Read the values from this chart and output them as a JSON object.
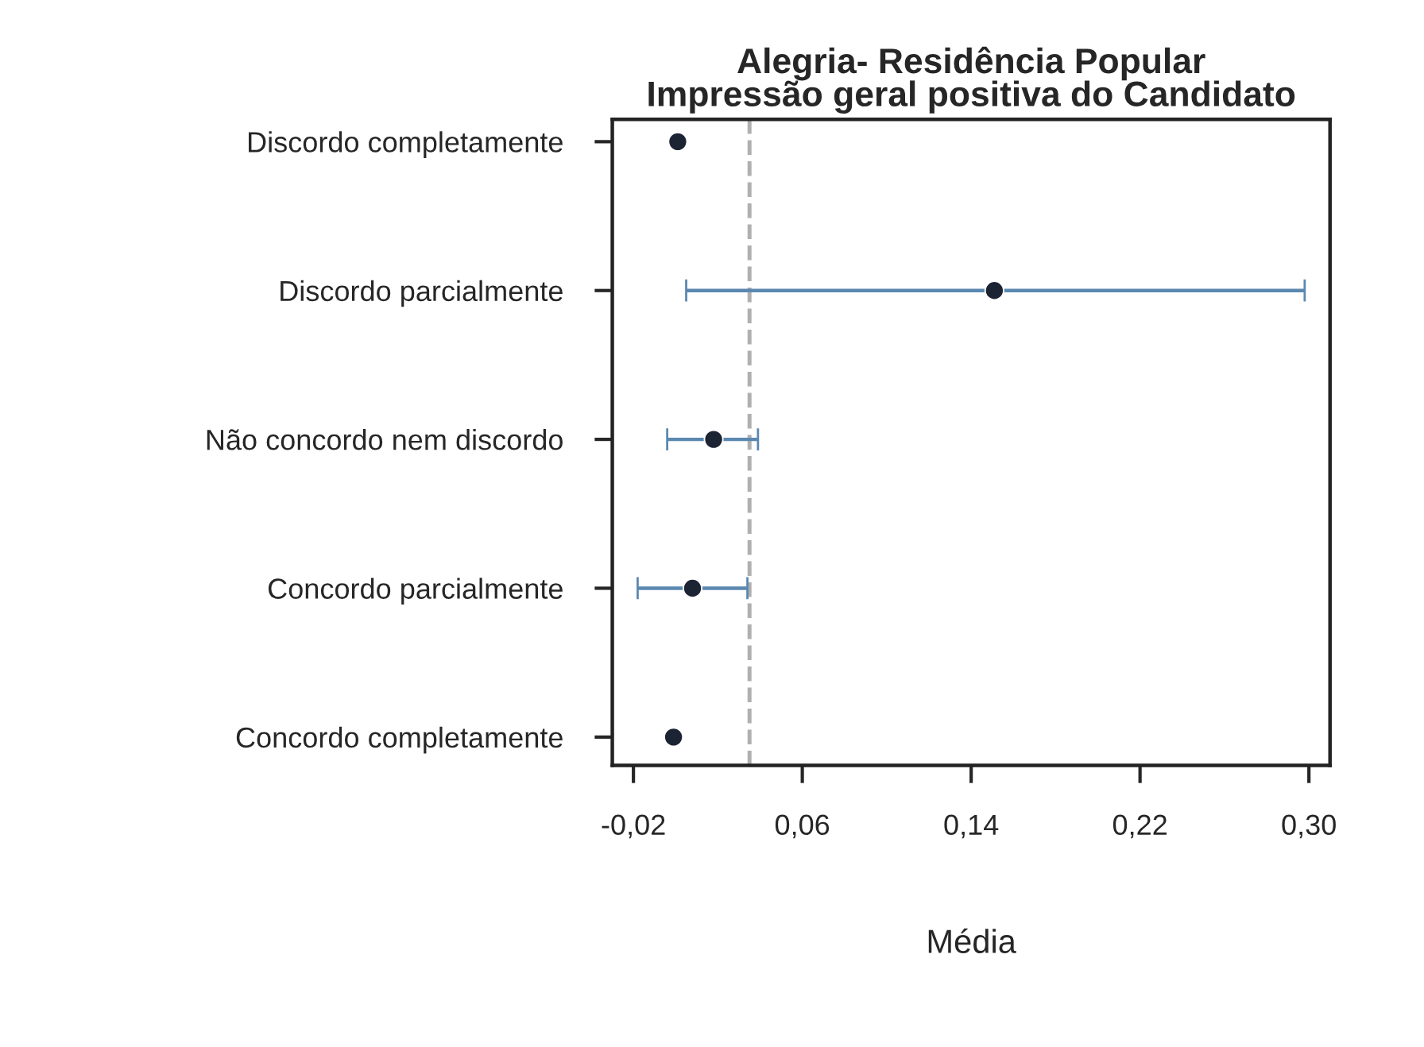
{
  "chart_data": {
    "type": "scatter",
    "title": "Alegria- Residência Popular\nImpressão geral positiva do Candidato",
    "xlabel": "Média",
    "orientation": "horizontal",
    "categories": [
      "Discordo completamente",
      "Discordo parcialmente",
      "Não concordo nem discordo",
      "Concordo parcialmente",
      "Concordo completamente"
    ],
    "series": [
      {
        "color": "#1c2333",
        "values": [
          0.001,
          0.151,
          0.018,
          0.008,
          -0.001
        ],
        "errors": [
          null,
          [
            0.005,
            0.298
          ],
          [
            -0.004,
            0.039
          ],
          [
            -0.018,
            0.034
          ],
          null
        ]
      }
    ],
    "xlim": [
      -0.03,
      0.31
    ],
    "xticks": [
      {
        "value": -0.02,
        "label": "-0,02"
      },
      {
        "value": 0.06,
        "label": "0,06"
      },
      {
        "value": 0.14,
        "label": "0,14"
      },
      {
        "value": 0.22,
        "label": "0,22"
      },
      {
        "value": 0.3,
        "label": "0,30"
      }
    ],
    "ref_lines": [
      {
        "axis": "x",
        "value": 0.035,
        "color": "#b0b0b0",
        "line_style": "dashed"
      }
    ],
    "grid": false,
    "legend": false,
    "marker": "circle"
  }
}
